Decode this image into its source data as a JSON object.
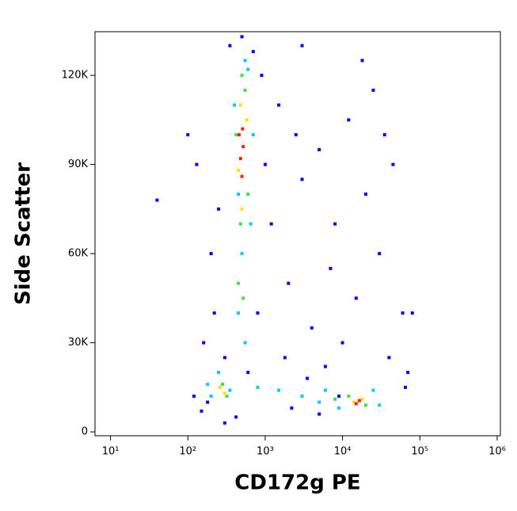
{
  "chart_data": {
    "type": "scatter",
    "xlabel": "CD172g PE",
    "ylabel": "Side Scatter",
    "xscale": "log",
    "xlim": [
      6.3,
      1100000
    ],
    "xticks": [
      {
        "value": 10,
        "label": "10¹"
      },
      {
        "value": 100,
        "label": "10²"
      },
      {
        "value": 1000,
        "label": "10³"
      },
      {
        "value": 10000,
        "label": "10⁴"
      },
      {
        "value": 100000,
        "label": "10⁵"
      },
      {
        "value": 1000000,
        "label": "10⁶"
      }
    ],
    "ylim": [
      -1300,
      134700
    ],
    "yticks": [
      0,
      {
        "value": 30000,
        "label": "30K"
      },
      {
        "value": 60000,
        "label": "60K"
      },
      {
        "value": 90000,
        "label": "90K"
      },
      {
        "value": 120000,
        "label": "120K"
      }
    ],
    "series": [
      {
        "color": "#0000ff",
        "x": [
          180,
          150,
          40,
          100,
          130,
          200,
          220,
          300,
          350,
          900,
          1500,
          2500,
          3000,
          5000,
          8000,
          12000,
          20000,
          30000,
          45000,
          60000,
          70000,
          2000,
          4000,
          10000,
          15000,
          25000,
          1200,
          1800,
          3500,
          6000,
          40000,
          65000,
          80000,
          700,
          250,
          160,
          120,
          2200,
          5000,
          9000,
          300,
          420,
          600,
          800,
          1000,
          18000,
          35000,
          7000,
          3000,
          500
        ],
        "y": [
          10000,
          7000,
          78000,
          100000,
          90000,
          60000,
          40000,
          25000,
          130000,
          120000,
          110000,
          100000,
          85000,
          95000,
          70000,
          105000,
          80000,
          60000,
          90000,
          40000,
          20000,
          50000,
          35000,
          30000,
          45000,
          115000,
          70000,
          25000,
          18000,
          22000,
          25000,
          15000,
          40000,
          128000,
          75000,
          30000,
          12000,
          8000,
          6000,
          12000,
          3000,
          5000,
          20000,
          40000,
          90000,
          125000,
          100000,
          55000,
          130000,
          133000
        ]
      },
      {
        "color": "#00c8ff",
        "x": [
          250,
          350,
          200,
          550,
          500,
          650,
          400,
          600,
          450,
          800,
          1500,
          3000,
          6000,
          9000,
          25000,
          30000,
          450,
          700,
          550,
          180,
          5000
        ],
        "y": [
          20000,
          14000,
          12000,
          30000,
          60000,
          70000,
          110000,
          122000,
          40000,
          15000,
          14000,
          12000,
          14000,
          8000,
          14000,
          9000,
          80000,
          100000,
          125000,
          16000,
          10000
        ]
      },
      {
        "color": "#40e040",
        "x": [
          280,
          320,
          450,
          520,
          480,
          600,
          420,
          550,
          12000,
          20000,
          8000,
          500
        ],
        "y": [
          16000,
          12000,
          50000,
          45000,
          70000,
          80000,
          100000,
          115000,
          12000,
          9000,
          11000,
          120000
        ]
      },
      {
        "color": "#ffe000",
        "x": [
          260,
          300,
          500,
          450,
          580,
          14000,
          18000,
          480
        ],
        "y": [
          15000,
          13000,
          75000,
          88000,
          105000,
          10000,
          11000,
          110000
        ]
      },
      {
        "color": "#ff2000",
        "x": [
          480,
          520,
          460,
          500,
          15000,
          16500,
          510
        ],
        "y": [
          92000,
          96000,
          100000,
          86000,
          9500,
          10500,
          102000
        ]
      }
    ]
  }
}
